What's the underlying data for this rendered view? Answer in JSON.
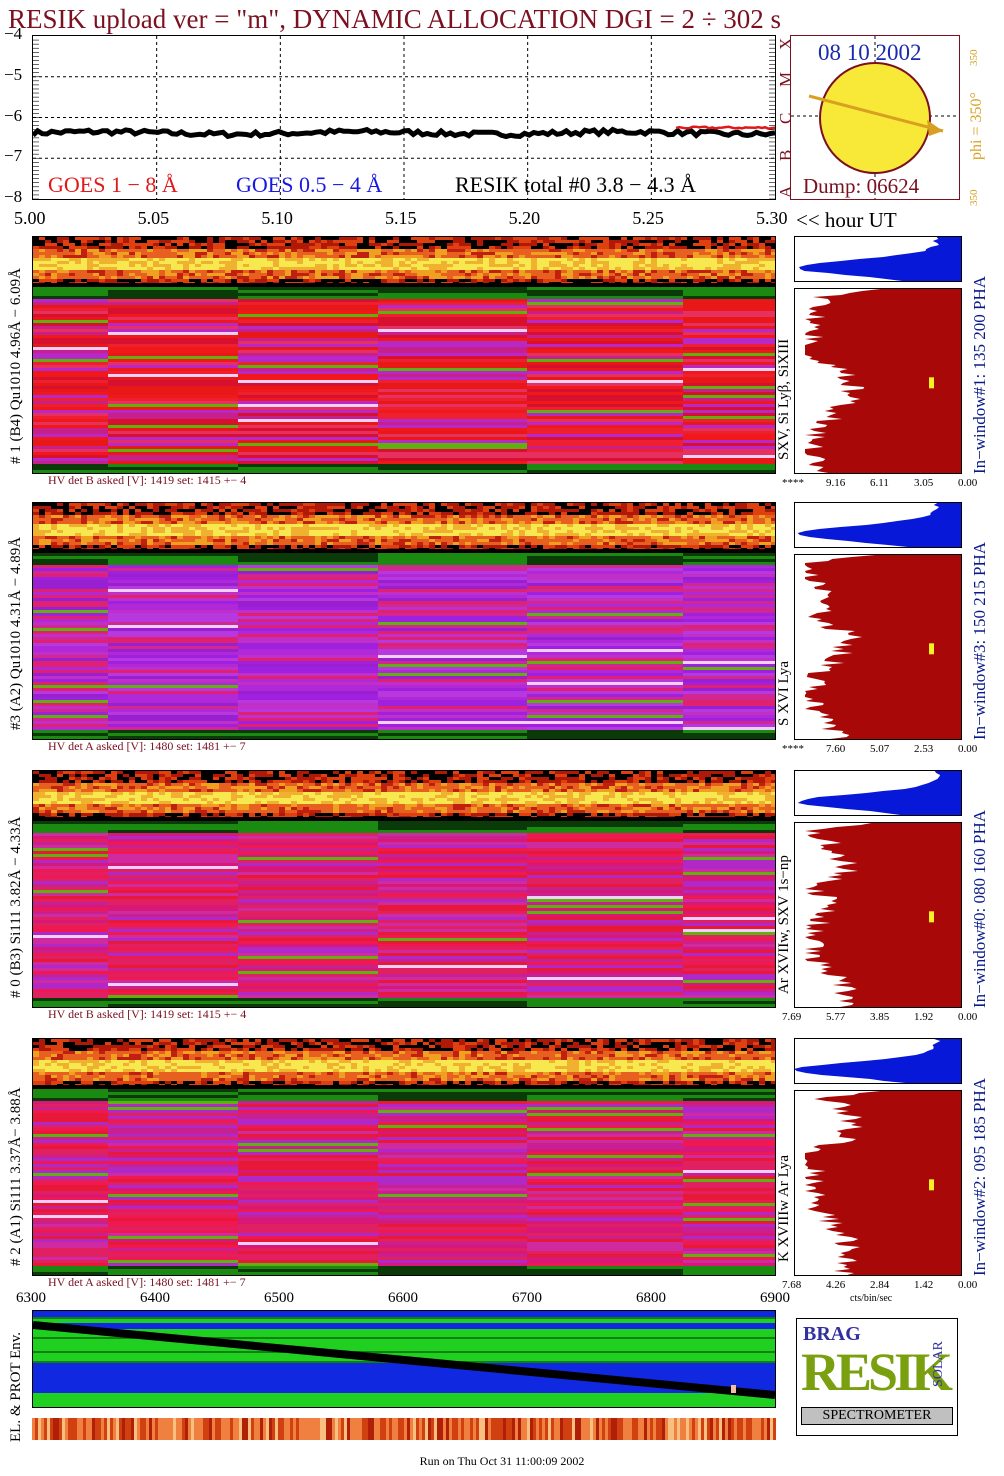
{
  "title": "RESIK upload ver = \"m\", DYNAMIC ALLOCATION  DGI =   2 ÷ 302 s",
  "goes_panel": {
    "y_ticks": [
      "−4",
      "−5",
      "−6",
      "−7",
      "−8"
    ],
    "x_ticks": [
      "5.00",
      "5.05",
      "5.10",
      "5.15",
      "5.20",
      "5.25",
      "5.30"
    ],
    "x_unit_label": "<< hour UT",
    "legend": {
      "goes_1_8": "GOES 1 − 8 Å",
      "goes_05_4": "GOES 0.5 − 4 Å",
      "resik_total": "RESIK total #0  3.8 − 4.3 Å"
    },
    "colors": {
      "goes_1_8": "#e01818",
      "goes_05_4": "#1818e0",
      "resik": "#000000"
    }
  },
  "sun_panel": {
    "date": "08 10 2002",
    "dump": "Dump: 06624",
    "letters": [
      "X",
      "M",
      "C",
      "B",
      "A"
    ],
    "phi_label": "phi = 350°",
    "side_top": "350",
    "side_bottom": "350"
  },
  "spectra": [
    {
      "left_label": "# 1 (B4) Qu1010 4.96Å − 6.09Å",
      "line_label": "SXV, Si Lyβ, SiXIII",
      "window_label": "In−window#1:  135 200 PHA",
      "hv": "HV det B asked [V]:  1419 set:  1415  +−   4",
      "axis": [
        "****",
        "9.16",
        "6.11",
        "3.05",
        "0.00"
      ],
      "base": "red"
    },
    {
      "left_label": "#3 (A2) Qu1010  4.31Å − 4.89Å",
      "line_label": "S XVI Lya",
      "window_label": "In−window#3:  150 215 PHA",
      "hv": "HV det A asked [V]:  1480 set:  1481  +−   7",
      "axis": [
        "****",
        "7.60",
        "5.07",
        "2.53",
        "0.00"
      ],
      "base": "purple"
    },
    {
      "left_label": "# 0 (B3) Si111  3.82Å − 4.33Å",
      "line_label": "Ar XVIIw,  SXV 1s−np",
      "window_label": "In−window#0:  080 160 PHA",
      "hv": "HV det B asked [V]:  1419 set:  1415  +−   4",
      "axis": [
        "7.69",
        "5.77",
        "3.85",
        "1.92",
        "0.00"
      ],
      "base": "pink"
    },
    {
      "left_label": "# 2 (A1) Si111  3.37Å− 3.88Å",
      "line_label": "K XVIIIw   Ar Lya",
      "window_label": "In−window#2:  095 185 PHA",
      "hv": "HV det A asked [V]:  1480 set:  1481  +−   7",
      "axis": [
        "7.68",
        "4.26",
        "2.84",
        "1.42",
        "0.00"
      ],
      "axis_unit": "cts/bin/sec",
      "base": "pink"
    }
  ],
  "env_panel": {
    "left_label": "EL. & PROT Env.",
    "x_ticks": [
      "6300",
      "6400",
      "6500",
      "6600",
      "6700",
      "6800",
      "6900"
    ]
  },
  "logo": {
    "letters": "RESIK",
    "small_left": "BRAG",
    "small_right": "SOLAR",
    "banner": "SPECTROMETER"
  },
  "footer": "Run on Thu Oct 31 11:00:09 2002",
  "chart_data": {
    "type": "line",
    "title": "RESIK upload ver = \"m\", DYNAMIC ALLOCATION  DGI =   2 ÷ 302 s",
    "xlabel": "<< hour UT",
    "ylabel": "",
    "xlim": [
      5.0,
      5.3
    ],
    "ylim": [
      -8,
      -4
    ],
    "series": [
      {
        "name": "RESIK total #0  3.8 − 4.3 Å",
        "x_range": [
          5.0,
          5.3
        ],
        "mean": -6.38
      },
      {
        "name": "GOES 1 − 8 Å",
        "x_range": [
          5.26,
          5.3
        ],
        "mean": -6.25
      }
    ]
  }
}
